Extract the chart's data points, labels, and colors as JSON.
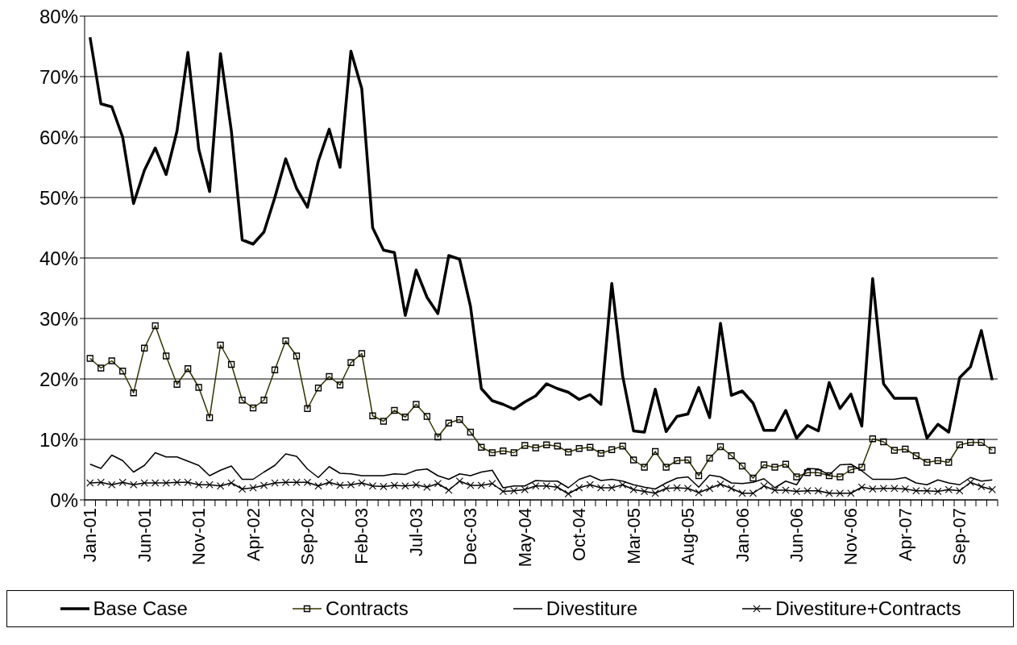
{
  "chart_data": {
    "type": "line",
    "categories": [
      "Jan-01",
      null,
      null,
      null,
      null,
      "Jun-01",
      null,
      null,
      null,
      null,
      "Nov-01",
      null,
      null,
      null,
      null,
      "Apr-02",
      null,
      null,
      null,
      null,
      "Sep-02",
      null,
      null,
      null,
      null,
      "Feb-03",
      null,
      null,
      null,
      null,
      "Jul-03",
      null,
      null,
      null,
      null,
      "Dec-03",
      null,
      null,
      null,
      null,
      "May-04",
      null,
      null,
      null,
      null,
      "Oct-04",
      null,
      null,
      null,
      null,
      "Mar-05",
      null,
      null,
      null,
      null,
      "Aug-05",
      null,
      null,
      null,
      null,
      "Jan-06",
      null,
      null,
      null,
      null,
      "Jun-06",
      null,
      null,
      null,
      null,
      "Nov-06",
      null,
      null,
      null,
      null,
      "Apr-07",
      null,
      null,
      null,
      null,
      "Sep-07",
      null,
      null,
      null
    ],
    "series": [
      {
        "name": "Base Case",
        "color": "#000000",
        "marker": "none",
        "values": [
          76.5,
          65.5,
          65,
          60,
          49,
          54.5,
          58.2,
          53.8,
          61,
          74,
          58,
          51,
          73.8,
          61,
          43,
          42.3,
          44.3,
          50,
          56.4,
          51.5,
          48.4,
          56,
          61.3,
          55,
          74.2,
          68,
          45,
          41.3,
          40.9,
          30.5,
          38,
          33.5,
          30.8,
          40.4,
          39.8,
          32,
          18.4,
          16.4,
          15.8,
          15,
          16.2,
          17.2,
          19.2,
          18.4,
          17.8,
          16.6,
          17.4,
          15.8,
          35.8,
          20.5,
          11.4,
          11.2,
          18.3,
          11.3,
          13.8,
          14.2,
          18.6,
          13.6,
          29.2,
          17.3,
          18,
          16,
          11.5,
          11.5,
          14.8,
          10.2,
          12.3,
          11.4,
          19.4,
          15.1,
          17.5,
          12.2,
          36.6,
          19.2,
          16.8,
          16.8,
          16.8,
          10.2,
          12.5,
          11.2,
          20.2,
          22,
          28,
          19.8
        ]
      },
      {
        "name": "Contracts",
        "color": "#333300",
        "marker": "square",
        "values": [
          23.4,
          21.8,
          23,
          21.3,
          17.7,
          25.1,
          28.8,
          23.8,
          19.1,
          21.7,
          18.6,
          13.6,
          25.6,
          22.4,
          16.5,
          15.2,
          16.5,
          21.5,
          26.3,
          23.8,
          15.1,
          18.5,
          20.4,
          19,
          22.7,
          24.2,
          13.9,
          13,
          14.8,
          13.7,
          15.8,
          13.8,
          10.4,
          12.7,
          13.3,
          11.2,
          8.7,
          7.8,
          8.1,
          7.8,
          9,
          8.6,
          9.1,
          8.9,
          7.9,
          8.5,
          8.7,
          7.7,
          8.3,
          8.9,
          6.6,
          5.4,
          8,
          5.4,
          6.5,
          6.6,
          4,
          6.9,
          8.8,
          7.3,
          5.6,
          3.6,
          5.8,
          5.4,
          5.9,
          3.8,
          4.5,
          4.5,
          4,
          3.8,
          5,
          5.4,
          10.1,
          9.6,
          8.2,
          8.4,
          7.3,
          6.2,
          6.5,
          6.2,
          9.1,
          9.5,
          9.5,
          8.2
        ]
      },
      {
        "name": "Divestiture",
        "color": "#000000",
        "marker": "none",
        "values": [
          5.9,
          5.2,
          7.4,
          6.5,
          4.6,
          5.7,
          7.8,
          7.1,
          7.1,
          6.4,
          5.7,
          4,
          4.9,
          5.6,
          3.4,
          3.4,
          4.6,
          5.7,
          7.6,
          7.2,
          5.1,
          3.7,
          5.5,
          4.4,
          4.3,
          4,
          4,
          4,
          4.3,
          4.2,
          4.9,
          5.1,
          4,
          3.4,
          4.3,
          4,
          4.6,
          4.9,
          2,
          2.3,
          2.3,
          3.2,
          3.1,
          3.1,
          2,
          3.4,
          4,
          3.2,
          3.4,
          3.1,
          2.5,
          2.1,
          1.8,
          2.8,
          3.6,
          3.8,
          2.1,
          4.1,
          3.8,
          2.8,
          2.7,
          2.9,
          3.5,
          2,
          3.1,
          2.5,
          5.2,
          5.1,
          4.1,
          5.8,
          5.9,
          4.8,
          3.4,
          3.4,
          3.4,
          3.7,
          2.8,
          2.5,
          3.3,
          2.8,
          2.5,
          3.7,
          3.1,
          3.3
        ]
      },
      {
        "name": "Divestiture+Contracts",
        "color": "#000000",
        "marker": "cross",
        "values": [
          2.8,
          2.9,
          2.5,
          2.9,
          2.5,
          2.8,
          2.8,
          2.8,
          2.9,
          2.9,
          2.5,
          2.5,
          2.3,
          2.8,
          1.8,
          2,
          2.4,
          2.8,
          2.9,
          2.9,
          2.9,
          2.3,
          2.9,
          2.4,
          2.5,
          2.8,
          2.3,
          2.2,
          2.4,
          2.3,
          2.5,
          2.1,
          2.7,
          1.6,
          3.1,
          2.4,
          2.4,
          2.7,
          1.4,
          1.5,
          1.7,
          2.3,
          2.3,
          2.1,
          1,
          2,
          2.5,
          2,
          2,
          2.5,
          1.7,
          1.4,
          1.1,
          1.9,
          2,
          1.9,
          1.2,
          1.9,
          2.6,
          1.9,
          1.1,
          1.1,
          2.3,
          1.6,
          1.6,
          1.4,
          1.5,
          1.5,
          1.1,
          1.1,
          1.1,
          2.1,
          1.8,
          1.9,
          1.9,
          1.8,
          1.5,
          1.5,
          1.4,
          1.7,
          1.5,
          2.9,
          2.2,
          1.7
        ]
      }
    ],
    "ylim": [
      0,
      80
    ],
    "yticks": [
      {
        "value": 0,
        "label": "0%"
      },
      {
        "value": 10,
        "label": "10%"
      },
      {
        "value": 20,
        "label": "20%"
      },
      {
        "value": 30,
        "label": "30%"
      },
      {
        "value": 40,
        "label": "40%"
      },
      {
        "value": 50,
        "label": "50%"
      },
      {
        "value": 60,
        "label": "60%"
      },
      {
        "value": 70,
        "label": "70%"
      },
      {
        "value": 80,
        "label": "80%"
      }
    ],
    "grid": "y",
    "legend": "bottom"
  }
}
